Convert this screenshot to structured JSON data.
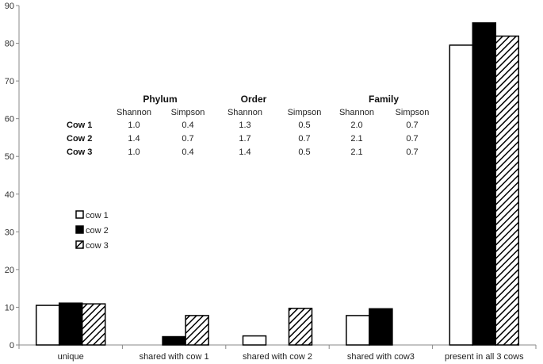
{
  "chart_data": {
    "type": "bar",
    "categories": [
      "unique",
      "shared with cow 1",
      "shared with cow 2",
      "shared with cow3",
      "present in all 3 cows"
    ],
    "series": [
      {
        "name": "cow 1",
        "values": [
          10.5,
          0,
          2.4,
          7.8,
          79.5
        ],
        "fill": "white"
      },
      {
        "name": "cow 2",
        "values": [
          11.1,
          2.2,
          0,
          9.6,
          85.4
        ],
        "fill": "black"
      },
      {
        "name": "cow 3",
        "values": [
          10.9,
          7.8,
          9.7,
          0,
          81.9
        ],
        "fill": "hatch"
      }
    ],
    "ylim": [
      0,
      90
    ],
    "yticks": [
      0,
      10,
      20,
      30,
      40,
      50,
      60,
      70,
      80,
      90
    ],
    "grid": false,
    "legend_position": "middle-left",
    "title": "",
    "xlabel": "",
    "ylabel": "",
    "colors": {
      "bar_stroke": "#000000",
      "axis": "#888888",
      "cow2_fill": "#000000",
      "cow1_fill": "#ffffff"
    }
  },
  "diversity_table": {
    "groups": [
      "Phylum",
      "Order",
      "Family"
    ],
    "subheaders": [
      "Shannon",
      "Simpson"
    ],
    "rows": [
      {
        "label": "Cow 1",
        "values": [
          "1.0",
          "0.4",
          "1.3",
          "0.5",
          "2.0",
          "0.7"
        ]
      },
      {
        "label": "Cow 2",
        "values": [
          "1.4",
          "0.7",
          "1.7",
          "0.7",
          "2.1",
          "0.7"
        ]
      },
      {
        "label": "Cow 3",
        "values": [
          "1.0",
          "0.4",
          "1.4",
          "0.5",
          "2.1",
          "0.7"
        ]
      }
    ]
  }
}
